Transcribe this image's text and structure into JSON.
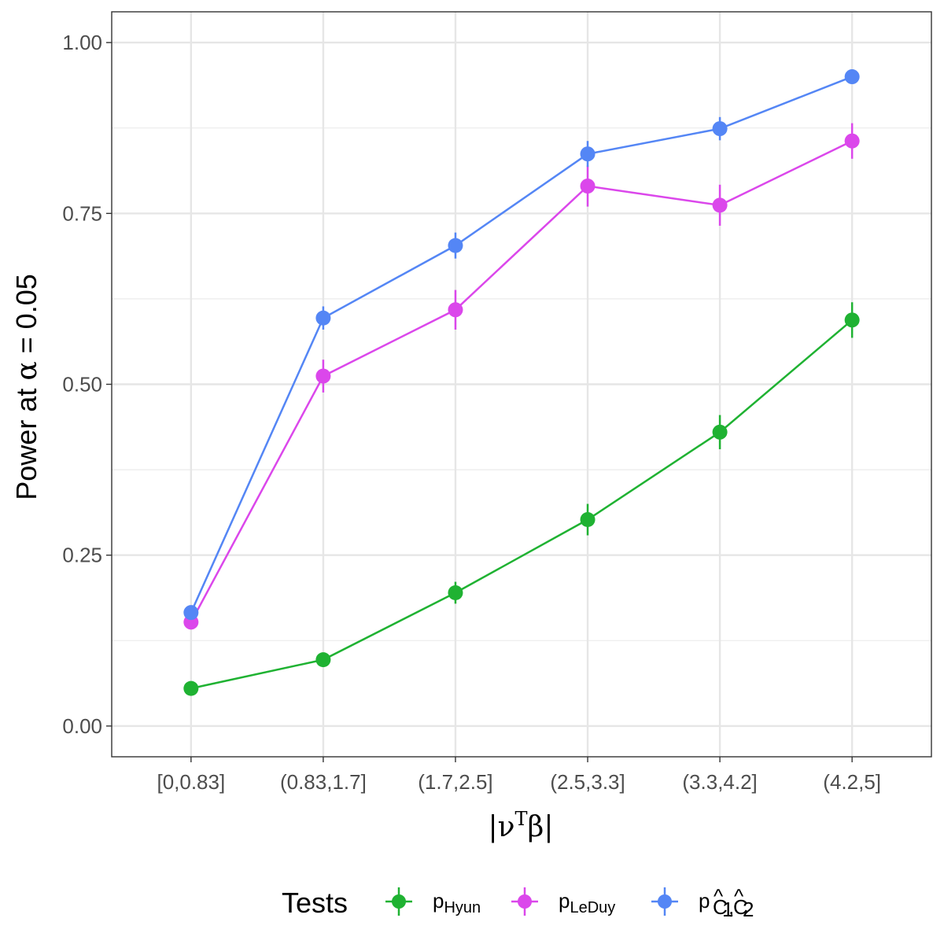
{
  "chart_data": {
    "type": "line",
    "ylabel": {
      "main": "Power at ",
      "alpha_symbol": "α",
      "eq_value": " = 0.05"
    },
    "xlabel": {
      "bar_left": "|",
      "nu": "ν",
      "sup": "T",
      "beta": "β",
      "bar_right": "|"
    },
    "categories": [
      "[0,0.83]",
      "(0.83,1.7]",
      "(1.7,2.5]",
      "(2.5,3.3]",
      "(3.3,4.2]",
      "(4.2,5]"
    ],
    "ylim": [
      -0.045,
      1.045
    ],
    "yticks": [
      "0.00",
      "0.25",
      "0.50",
      "0.75",
      "1.00"
    ],
    "grid": true,
    "legend": {
      "title": "Tests",
      "position": "bottom"
    },
    "series": [
      {
        "name": "p",
        "subscript": "Hyun",
        "color": "#1FB232",
        "values": [
          0.055,
          0.097,
          0.195,
          0.302,
          0.43,
          0.594
        ],
        "errors": [
          0.004,
          0.006,
          0.016,
          0.023,
          0.025,
          0.026
        ]
      },
      {
        "name": "p",
        "subscript": "LeDuy",
        "color": "#DB47EB",
        "values": [
          0.152,
          0.512,
          0.609,
          0.79,
          0.762,
          0.856
        ],
        "errors": [
          0.006,
          0.024,
          0.029,
          0.03,
          0.03,
          0.026
        ]
      },
      {
        "name": "p",
        "subscript": "Ĉ1,Ĉ2",
        "subscript_parts": [
          "C",
          "1",
          ",",
          "C",
          "2"
        ],
        "hat": "^",
        "color": "#5486F5",
        "values": [
          0.166,
          0.597,
          0.703,
          0.837,
          0.874,
          0.95
        ],
        "errors": [
          0.006,
          0.017,
          0.019,
          0.019,
          0.017,
          0.006
        ]
      }
    ]
  }
}
